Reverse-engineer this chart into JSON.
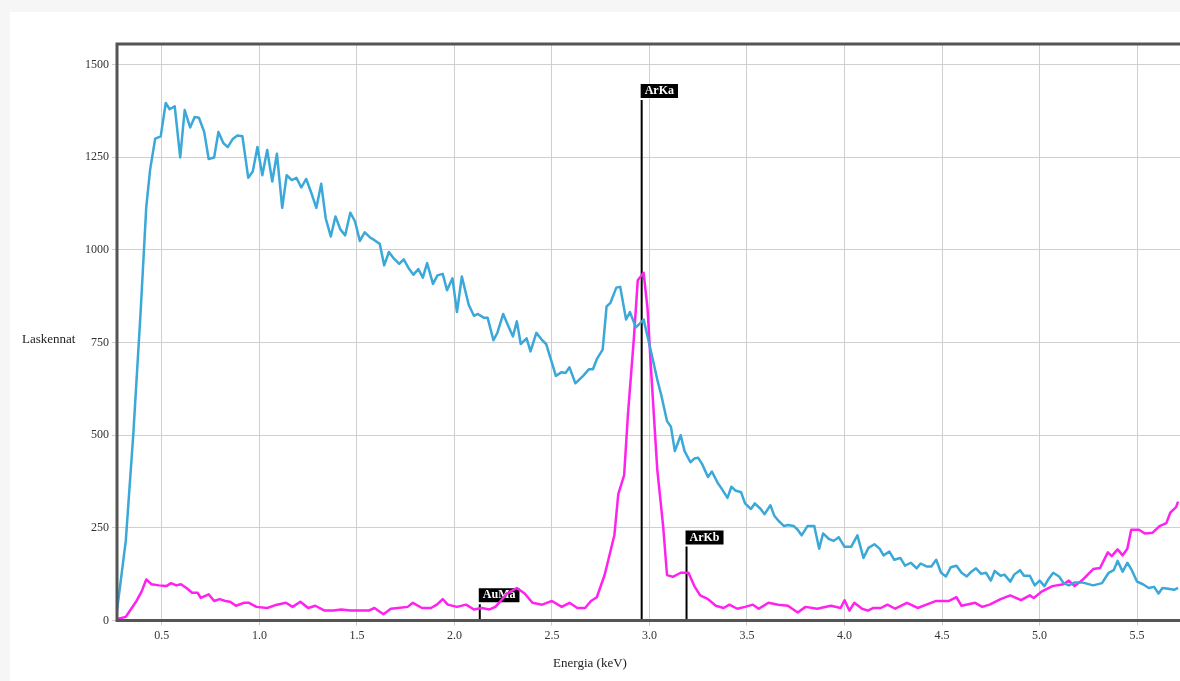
{
  "chart_data": {
    "type": "line",
    "xlabel": "Energia (keV)",
    "ylabel": "Laskennat",
    "xlim": [
      0.27,
      5.72
    ],
    "ylim": [
      0,
      1555
    ],
    "xticks": [
      0.5,
      {
        "value": 1,
        "label": "1.0"
      },
      1.5,
      {
        "value": 2,
        "label": "2.0"
      },
      2.5,
      {
        "value": 3,
        "label": "3.0"
      },
      3.5,
      {
        "value": 4,
        "label": "4.0"
      },
      4.5,
      {
        "value": 5,
        "label": "5.0"
      },
      5.5
    ],
    "yticks": [
      0,
      250,
      500,
      750,
      1000,
      1250,
      1500
    ],
    "grid": true,
    "legend": false,
    "marker": "none",
    "line_style": "solid",
    "series": [
      {
        "type": "line",
        "name": "AuMa",
        "color": "#000000",
        "x": [
          2.13,
          2.13
        ],
        "values": [
          0,
          44
        ]
      },
      {
        "type": "line",
        "name": "ArKa",
        "color": "#000000",
        "x": [
          2.96,
          2.96
        ],
        "values": [
          0,
          1404
        ]
      },
      {
        "type": "line",
        "name": "ArKb",
        "color": "#000000",
        "x": [
          3.19,
          3.19
        ],
        "values": [
          0,
          200
        ]
      },
      {
        "color": "#3aa8d8",
        "x": [
          0.27,
          0.315,
          0.353,
          0.39,
          0.42,
          0.44,
          0.466,
          0.494,
          0.52,
          0.54,
          0.566,
          0.594,
          0.617,
          0.645,
          0.668,
          0.69,
          0.717,
          0.74,
          0.768,
          0.79,
          0.815,
          0.838,
          0.862,
          0.887,
          0.913,
          0.943,
          0.966,
          0.99,
          1.015,
          1.04,
          1.066,
          1.09,
          1.117,
          1.14,
          1.166,
          1.19,
          1.215,
          1.24,
          1.268,
          1.292,
          1.317,
          1.34,
          1.366,
          1.39,
          1.415,
          1.44,
          1.466,
          1.49,
          1.515,
          1.54,
          1.566,
          1.59,
          1.617,
          1.64,
          1.664,
          1.69,
          1.717,
          1.74,
          1.768,
          1.79,
          1.815,
          1.838,
          1.86,
          1.89,
          1.913,
          1.94,
          1.962,
          1.99,
          2.013,
          2.038,
          2.073,
          2.1,
          2.12,
          2.15,
          2.17,
          2.2,
          2.22,
          2.25,
          2.27,
          2.3,
          2.32,
          2.34,
          2.37,
          2.39,
          2.42,
          2.45,
          2.47,
          2.5,
          2.52,
          2.55,
          2.57,
          2.59,
          2.62,
          2.64,
          2.66,
          2.69,
          2.71,
          2.73,
          2.76,
          2.78,
          2.8,
          2.83,
          2.85,
          2.88,
          2.9,
          2.93,
          2.95,
          2.97,
          3.01,
          3.04,
          3.06,
          3.09,
          3.11,
          3.13,
          3.16,
          3.18,
          3.21,
          3.23,
          3.25,
          3.27,
          3.3,
          3.32,
          3.35,
          3.37,
          3.4,
          3.42,
          3.44,
          3.47,
          3.49,
          3.52,
          3.54,
          3.57,
          3.59,
          3.62,
          3.64,
          3.66,
          3.69,
          3.71,
          3.74,
          3.76,
          3.78,
          3.81,
          3.845,
          3.87,
          3.89,
          3.92,
          3.945,
          3.97,
          4.0,
          4.034,
          4.066,
          4.097,
          4.123,
          4.153,
          4.18,
          4.2,
          4.23,
          4.255,
          4.286,
          4.31,
          4.34,
          4.37,
          4.39,
          4.42,
          4.445,
          4.47,
          4.495,
          4.52,
          4.545,
          4.574,
          4.6,
          4.627,
          4.65,
          4.674,
          4.7,
          4.725,
          4.75,
          4.77,
          4.8,
          4.82,
          4.85,
          4.87,
          4.9,
          4.92,
          4.95,
          4.975,
          5.0,
          5.025,
          5.047,
          5.07,
          5.1,
          5.123,
          5.15,
          5.18,
          5.218,
          5.275,
          5.32,
          5.354,
          5.38,
          5.4,
          5.426,
          5.45,
          5.47,
          5.5,
          5.53,
          5.56,
          5.587,
          5.61,
          5.63,
          5.66,
          5.69,
          5.71
        ],
        "values": [
          27,
          215,
          498,
          822,
          1115,
          1217,
          1300,
          1306,
          1396,
          1379,
          1387,
          1249,
          1377,
          1330,
          1358,
          1356,
          1318,
          1245,
          1249,
          1318,
          1288,
          1277,
          1298,
          1308,
          1306,
          1194,
          1211,
          1277,
          1201,
          1269,
          1184,
          1259,
          1113,
          1201,
          1188,
          1194,
          1168,
          1191,
          1151,
          1113,
          1178,
          1085,
          1036,
          1090,
          1055,
          1039,
          1100,
          1077,
          1024,
          1047,
          1034,
          1026,
          1016,
          958,
          994,
          976,
          962,
          974,
          948,
          933,
          948,
          925,
          964,
          908,
          931,
          935,
          891,
          923,
          832,
          928,
          852,
          822,
          827,
          817,
          817,
          756,
          776,
          827,
          802,
          766,
          807,
          746,
          761,
          726,
          776,
          756,
          746,
          695,
          660,
          670,
          668,
          683,
          640,
          650,
          660,
          678,
          678,
          705,
          731,
          847,
          857,
          898,
          900,
          812,
          832,
          791,
          801,
          812,
          721,
          650,
          609,
          538,
          523,
          457,
          500,
          457,
          427,
          437,
          439,
          422,
          387,
          402,
          371,
          356,
          331,
          361,
          351,
          346,
          316,
          301,
          316,
          301,
          287,
          311,
          283,
          270,
          255,
          258,
          255,
          245,
          230,
          255,
          255,
          194,
          235,
          220,
          215,
          225,
          199,
          199,
          230,
          169,
          196,
          206,
          194,
          176,
          186,
          164,
          169,
          148,
          156,
          141,
          154,
          146,
          146,
          164,
          129,
          119,
          144,
          148,
          129,
          119,
          132,
          141,
          126,
          129,
          108,
          134,
          121,
          124,
          105,
          124,
          136,
          121,
          121,
          95,
          108,
          93,
          113,
          129,
          119,
          101,
          95,
          103,
          103,
          95,
          101,
          129,
          136,
          161,
          132,
          156,
          139,
          105,
          98,
          88,
          91,
          73,
          88,
          86,
          83,
          88
        ]
      },
      {
        "color": "#ff22ee",
        "x": [
          0.27,
          0.315,
          0.343,
          0.37,
          0.396,
          0.42,
          0.447,
          0.485,
          0.523,
          0.547,
          0.574,
          0.598,
          0.626,
          0.655,
          0.683,
          0.7,
          0.74,
          0.768,
          0.796,
          0.825,
          0.85,
          0.88,
          0.92,
          0.947,
          0.985,
          1.04,
          1.09,
          1.136,
          1.17,
          1.21,
          1.25,
          1.287,
          1.334,
          1.38,
          1.42,
          1.466,
          1.513,
          1.56,
          1.59,
          1.636,
          1.674,
          1.71,
          1.76,
          1.787,
          1.834,
          1.88,
          1.91,
          1.94,
          1.966,
          2.013,
          2.06,
          2.1,
          2.14,
          2.18,
          2.21,
          2.27,
          2.32,
          2.36,
          2.4,
          2.45,
          2.5,
          2.55,
          2.59,
          2.63,
          2.67,
          2.7,
          2.73,
          2.77,
          2.82,
          2.84,
          2.87,
          2.89,
          2.92,
          2.94,
          2.97,
          2.99,
          3.01,
          3.04,
          3.07,
          3.09,
          3.12,
          3.16,
          3.2,
          3.23,
          3.26,
          3.3,
          3.34,
          3.38,
          3.41,
          3.45,
          3.49,
          3.53,
          3.56,
          3.61,
          3.66,
          3.71,
          3.76,
          3.8,
          3.86,
          3.93,
          3.98,
          4.0,
          4.025,
          4.05,
          4.09,
          4.12,
          4.148,
          4.186,
          4.22,
          4.26,
          4.32,
          4.375,
          4.42,
          4.47,
          4.536,
          4.574,
          4.6,
          4.67,
          4.706,
          4.744,
          4.8,
          4.85,
          4.905,
          4.95,
          4.97,
          5.01,
          5.066,
          5.123,
          5.15,
          5.18,
          5.227,
          5.275,
          5.31,
          5.35,
          5.37,
          5.4,
          5.426,
          5.45,
          5.47,
          5.51,
          5.54,
          5.58,
          5.615,
          5.65,
          5.67,
          5.7,
          5.71
        ],
        "values": [
          4,
          10,
          32,
          53,
          78,
          111,
          98,
          95,
          93,
          101,
          95,
          98,
          88,
          75,
          75,
          61,
          71,
          53,
          58,
          53,
          51,
          40,
          48,
          48,
          37,
          34,
          43,
          48,
          37,
          51,
          34,
          40,
          27,
          27,
          30,
          27,
          27,
          27,
          34,
          17,
          32,
          34,
          37,
          48,
          34,
          34,
          43,
          58,
          43,
          37,
          43,
          30,
          34,
          30,
          37,
          73,
          88,
          73,
          48,
          43,
          53,
          37,
          48,
          34,
          34,
          53,
          63,
          123,
          230,
          341,
          392,
          559,
          761,
          918,
          938,
          842,
          660,
          407,
          255,
          123,
          118,
          129,
          129,
          93,
          68,
          58,
          40,
          34,
          43,
          32,
          37,
          43,
          32,
          48,
          43,
          40,
          22,
          37,
          32,
          40,
          34,
          55,
          27,
          48,
          32,
          27,
          34,
          34,
          43,
          32,
          48,
          34,
          43,
          53,
          53,
          63,
          40,
          48,
          37,
          43,
          58,
          68,
          55,
          68,
          61,
          78,
          93,
          98,
          108,
          93,
          113,
          139,
          142,
          184,
          174,
          192,
          176,
          194,
          245,
          245,
          235,
          237,
          255,
          263,
          291,
          306,
          321
        ]
      }
    ]
  }
}
